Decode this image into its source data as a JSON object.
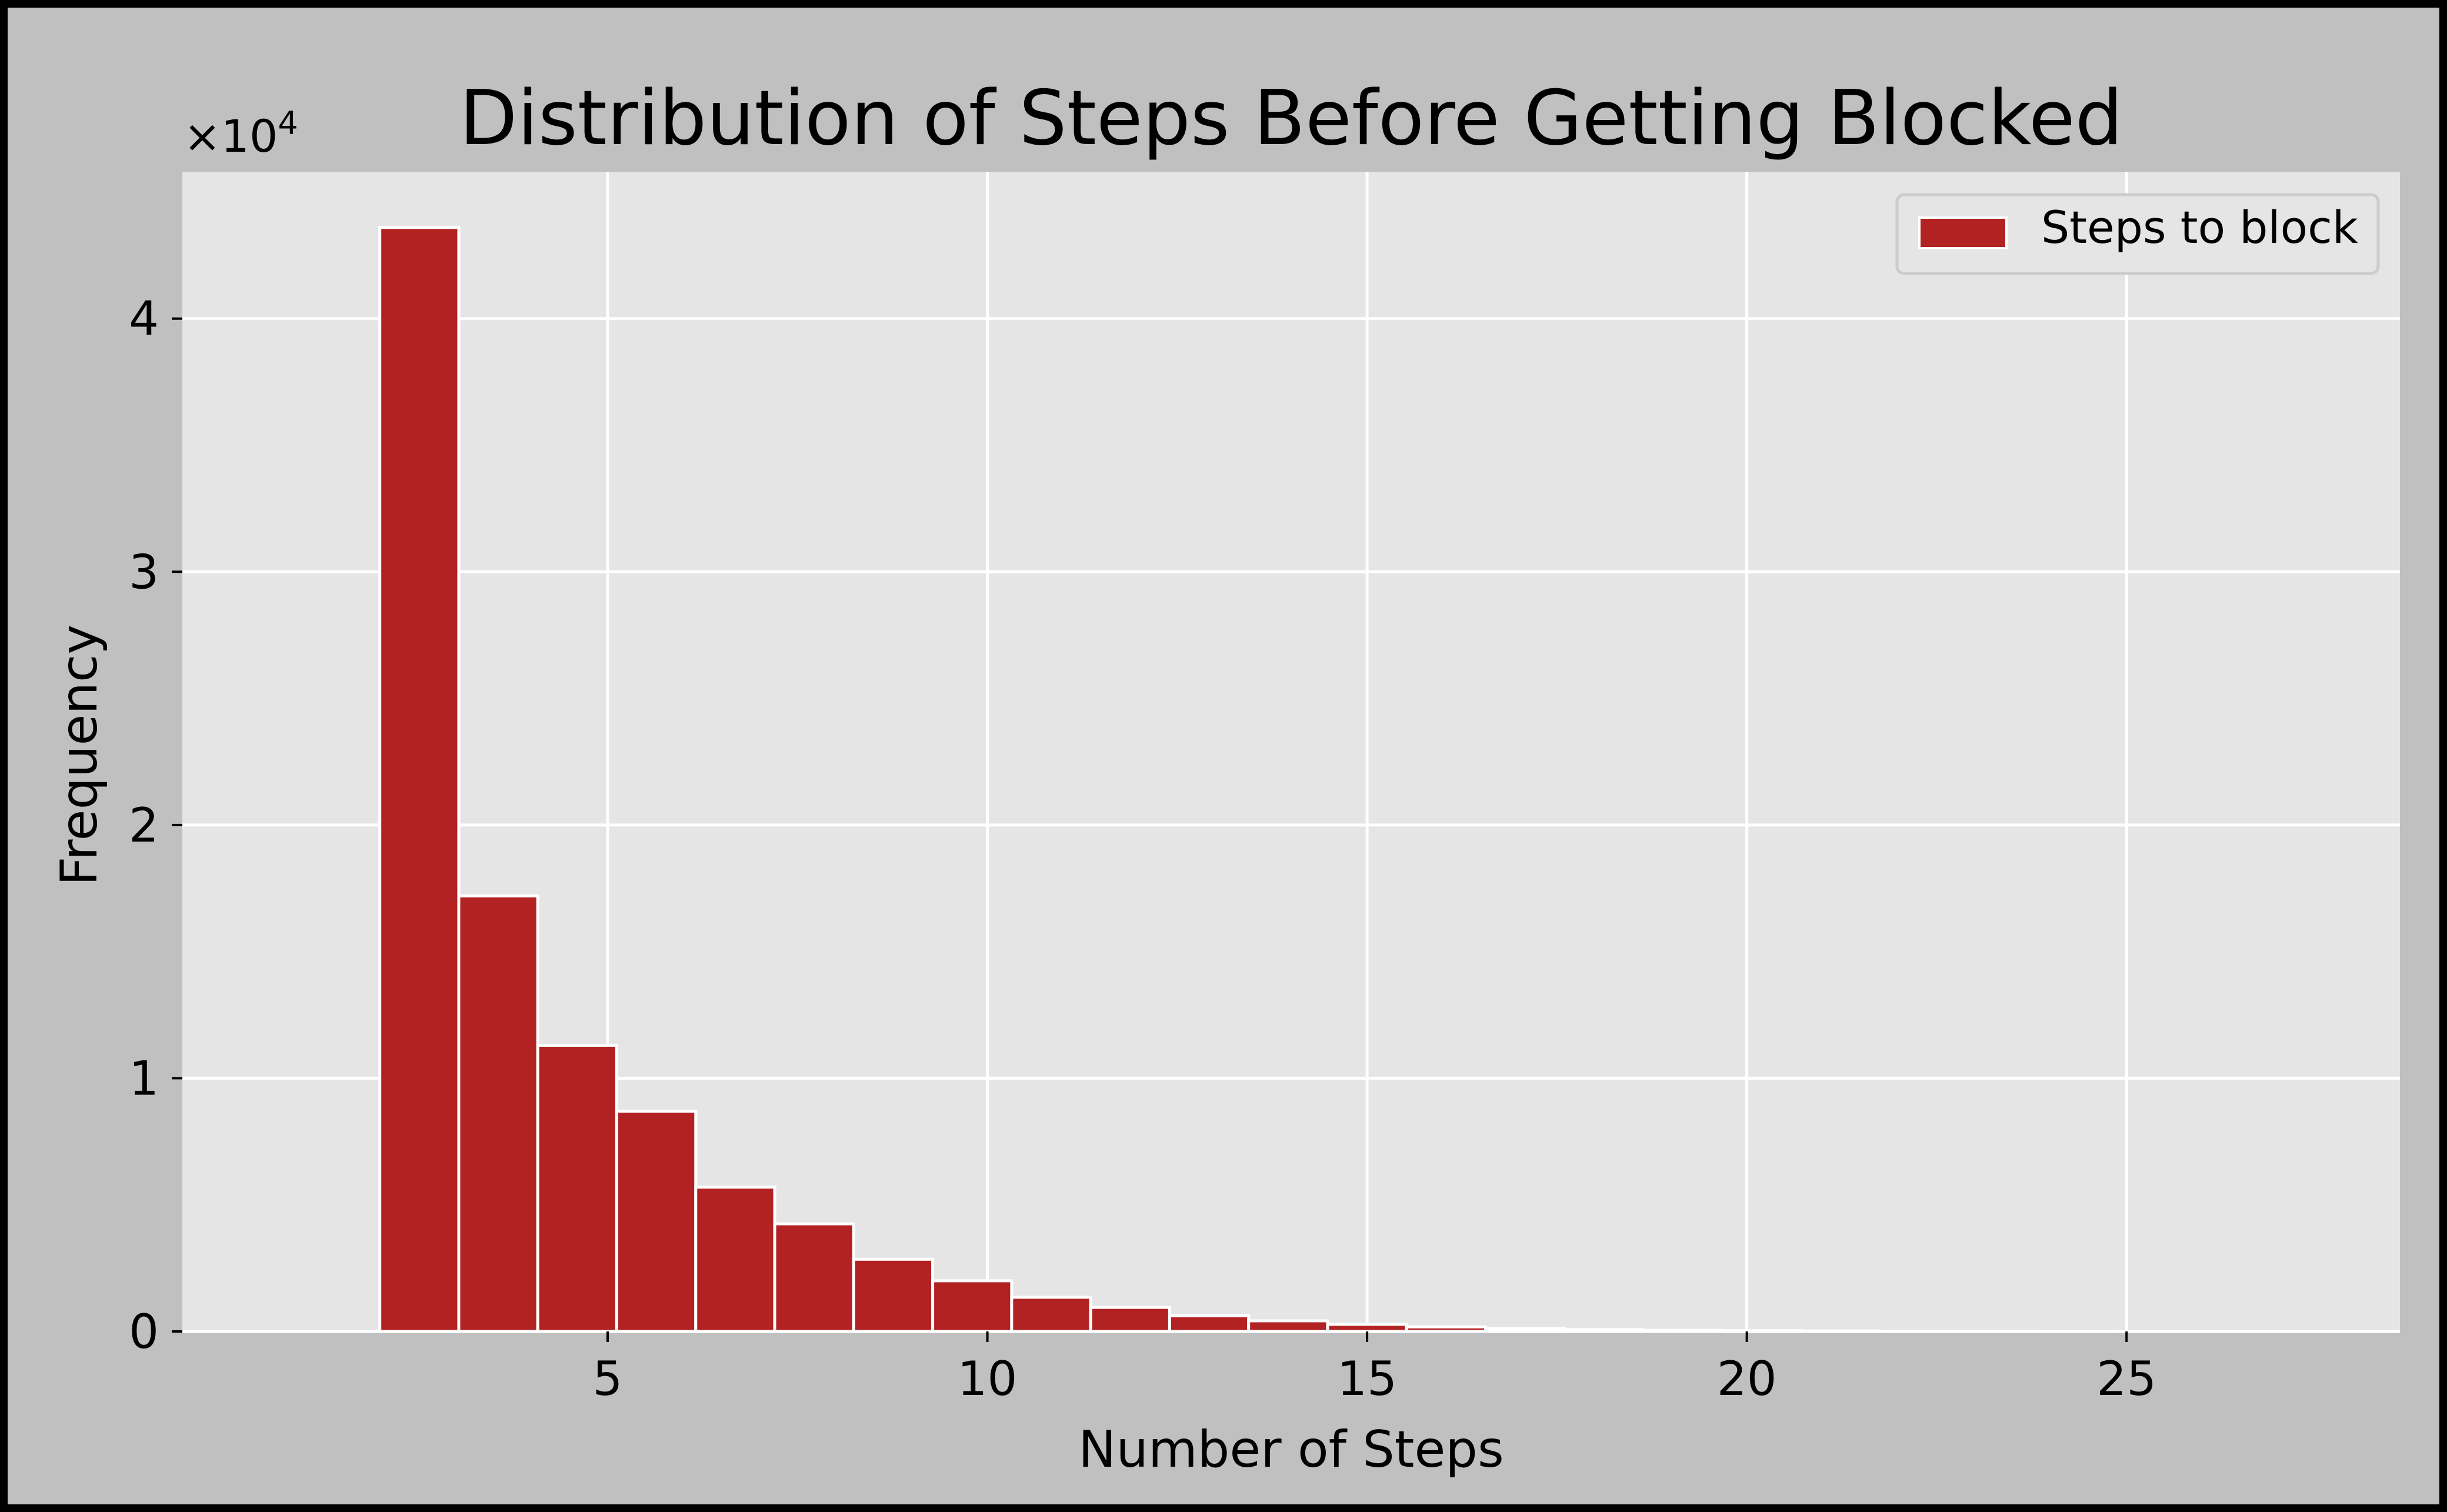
{
  "chart_data": {
    "type": "bar",
    "title": "Distribution of Steps Before Getting Blocked",
    "xlabel": "Number of Steps",
    "ylabel": "Frequency",
    "y_multiplier": "×10",
    "y_multiplier_exp": "4",
    "xlim": [
      -0.6,
      28.6
    ],
    "ylim": [
      0,
      45800
    ],
    "xticks": [
      5,
      10,
      15,
      20,
      25
    ],
    "xtick_labels": [
      "5",
      "10",
      "15",
      "20",
      "25"
    ],
    "yticks": [
      0,
      10000,
      20000,
      30000,
      40000
    ],
    "ytick_labels": [
      "0",
      "1",
      "2",
      "3",
      "4"
    ],
    "grid": true,
    "legend": {
      "placement": "top-right",
      "entries": [
        "Steps to block"
      ]
    },
    "series": [
      {
        "name": "Steps to block",
        "color": "#b22222",
        "bins": [
          {
            "x0": 2.0,
            "x1": 3.04,
            "value": 43600
          },
          {
            "x0": 3.04,
            "x1": 4.08,
            "value": 17200
          },
          {
            "x0": 4.08,
            "x1": 5.12,
            "value": 11300
          },
          {
            "x0": 5.12,
            "x1": 6.16,
            "value": 8700
          },
          {
            "x0": 6.16,
            "x1": 7.2,
            "value": 5700
          },
          {
            "x0": 7.2,
            "x1": 8.24,
            "value": 4250
          },
          {
            "x0": 8.24,
            "x1": 9.28,
            "value": 2850
          },
          {
            "x0": 9.28,
            "x1": 10.32,
            "value": 2000
          },
          {
            "x0": 10.32,
            "x1": 11.36,
            "value": 1350
          },
          {
            "x0": 11.36,
            "x1": 12.4,
            "value": 950
          },
          {
            "x0": 12.4,
            "x1": 13.44,
            "value": 620
          },
          {
            "x0": 13.44,
            "x1": 14.48,
            "value": 420
          },
          {
            "x0": 14.48,
            "x1": 15.52,
            "value": 280
          },
          {
            "x0": 15.52,
            "x1": 16.56,
            "value": 180
          },
          {
            "x0": 16.56,
            "x1": 17.6,
            "value": 110
          },
          {
            "x0": 17.6,
            "x1": 18.64,
            "value": 70
          },
          {
            "x0": 18.64,
            "x1": 19.68,
            "value": 45
          },
          {
            "x0": 19.68,
            "x1": 20.72,
            "value": 30
          },
          {
            "x0": 20.72,
            "x1": 21.76,
            "value": 20
          },
          {
            "x0": 21.76,
            "x1": 22.8,
            "value": 12
          },
          {
            "x0": 22.8,
            "x1": 23.84,
            "value": 8
          },
          {
            "x0": 23.84,
            "x1": 24.88,
            "value": 5
          },
          {
            "x0": 24.88,
            "x1": 25.92,
            "value": 3
          },
          {
            "x0": 25.92,
            "x1": 26.96,
            "value": 2
          },
          {
            "x0": 26.96,
            "x1": 28.0,
            "value": 1
          }
        ]
      }
    ],
    "colors": {
      "figure_background": "#c0c0c0",
      "plot_background": "#e5e5e5",
      "grid": "#ffffff",
      "bar_fill": "#b22222",
      "bar_edge": "#ffffff"
    }
  }
}
